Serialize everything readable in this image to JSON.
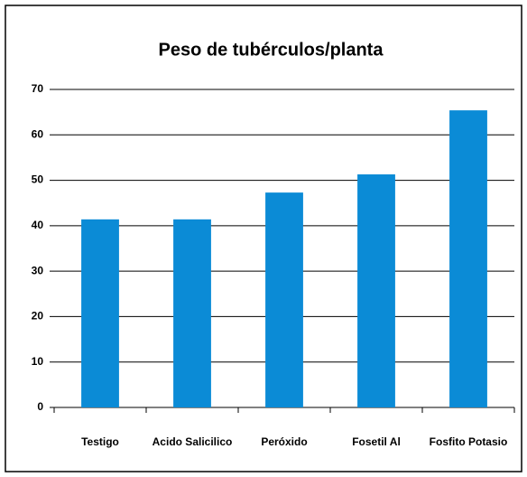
{
  "chart_data": {
    "type": "bar",
    "title": "Peso de tubérculos/planta",
    "categories": [
      "Testigo",
      "Acido Salicilico",
      "Peróxido",
      "Fosetil Al",
      "Fosfito Potasio"
    ],
    "values": [
      41.4,
      41.4,
      47.3,
      51.3,
      65.4
    ],
    "color": "#0b8bd6",
    "ylim": [
      0,
      70
    ],
    "yticks": [
      0,
      10,
      20,
      30,
      40,
      50,
      60,
      70
    ],
    "grid": true
  }
}
